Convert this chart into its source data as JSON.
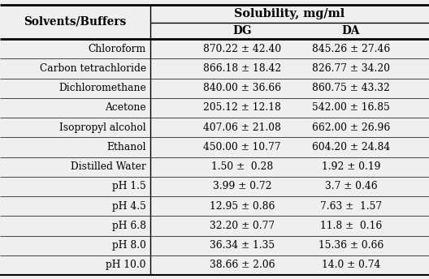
{
  "title_top": "Solubility, mg/ml",
  "col_header_left": "Solvents/Buffers",
  "col_header_dg": "DG",
  "col_header_da": "DA",
  "rows": [
    [
      "Chloroform",
      "870.22 ± 42.40",
      "845.26 ± 27.46"
    ],
    [
      "Carbon tetrachloride",
      "866.18 ± 18.42",
      "826.77 ± 34.20"
    ],
    [
      "Dichloromethane",
      "840.00 ± 36.66",
      "860.75 ± 43.32"
    ],
    [
      "Acetone",
      "205.12 ± 12.18",
      "542.00 ± 16.85"
    ],
    [
      "Isopropyl alcohol",
      "407.06 ± 21.08",
      "662.00 ± 26.96"
    ],
    [
      "Ethanol",
      "450.00 ± 10.77",
      "604.20 ± 24.84"
    ],
    [
      "Distilled Water",
      "1.50 ±  0.28",
      "1.92 ± 0.19"
    ],
    [
      "pH 1.5",
      "3.99 ± 0.72",
      "3.7 ± 0.46"
    ],
    [
      "pH 4.5",
      "12.95 ± 0.86",
      "7.63 ±  1.57"
    ],
    [
      "pH 6.8",
      "32.20 ± 0.77",
      "11.8 ±  0.16"
    ],
    [
      "pH 8.0",
      "36.34 ± 1.35",
      "15.36 ± 0.66"
    ],
    [
      "pH 10.0",
      "38.66 ± 2.06",
      "14.0 ± 0.74"
    ]
  ],
  "bg_color": "#efefef",
  "text_color": "#000000",
  "font_size": 8.8,
  "header_font_size": 9.8,
  "fig_width": 5.28,
  "fig_height": 3.44,
  "dpi": 100
}
